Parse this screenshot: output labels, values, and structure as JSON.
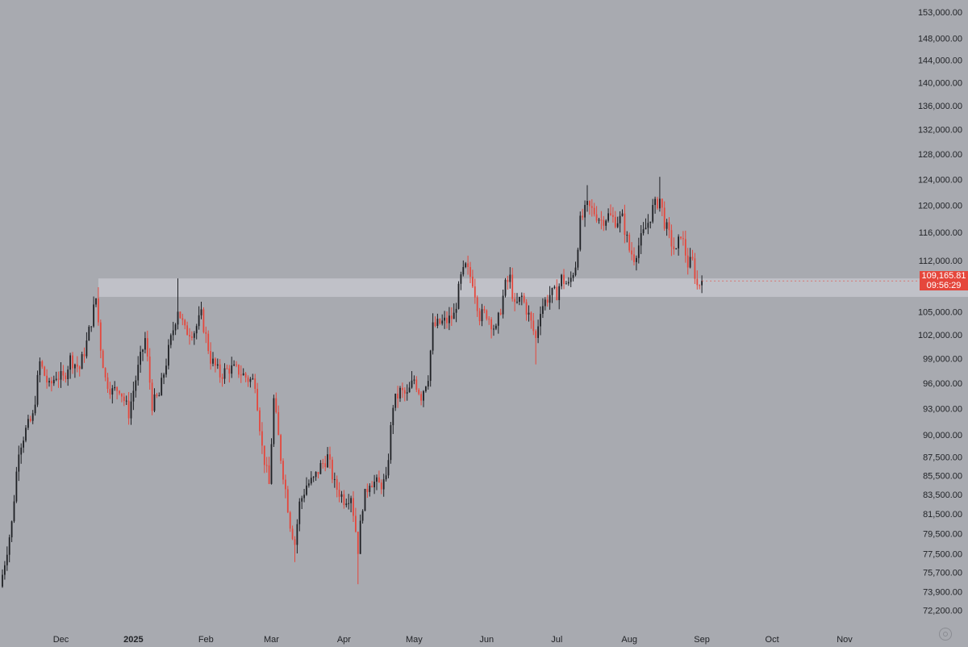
{
  "chart_data": {
    "type": "candlestick",
    "title": "",
    "colors": {
      "up": "#1e2024",
      "down": "#e5473c",
      "background": "#a8aab0",
      "zone": "#c4c6cc"
    },
    "y_axis": {
      "scale": "log",
      "ylim": [
        70500,
        155000
      ],
      "tick_labels": [
        "153,000.00",
        "148,000.00",
        "144,000.00",
        "140,000.00",
        "136,000.00",
        "132,000.00",
        "128,000.00",
        "124,000.00",
        "120,000.00",
        "116,000.00",
        "112,000.00",
        "105,000.00",
        "102,000.00",
        "99,000.00",
        "96,000.00",
        "93,000.00",
        "90,000.00",
        "87,500.00",
        "85,500.00",
        "83,500.00",
        "81,500.00",
        "79,500.00",
        "77,500.00",
        "75,700.00",
        "73,900.00",
        "72,200.00"
      ]
    },
    "x_axis": {
      "tick_labels": [
        "Dec",
        "2025",
        "Feb",
        "Mar",
        "Apr",
        "May",
        "Jun",
        "Jul",
        "Aug",
        "Sep",
        "Oct",
        "Nov"
      ],
      "bold_labels": [
        "2025"
      ],
      "xlim": [
        "2024-11-06",
        "2025-11-21"
      ]
    },
    "zone": {
      "from": 107000,
      "to": 109500
    },
    "last_price": {
      "value": "109,165.81",
      "countdown": "09:56:29"
    },
    "legend": "none",
    "grid": false,
    "anchors": [
      [
        "2024-11-06",
        75500
      ],
      [
        "2024-11-10",
        80500
      ],
      [
        "2024-11-13",
        88500
      ],
      [
        "2024-11-16",
        90500
      ],
      [
        "2024-11-19",
        92000
      ],
      [
        "2024-11-22",
        98500
      ],
      [
        "2024-11-26",
        95500
      ],
      [
        "2024-11-29",
        97000
      ],
      [
        "2024-12-02",
        96500
      ],
      [
        "2024-12-05",
        99000
      ],
      [
        "2024-12-09",
        97800
      ],
      [
        "2024-12-12",
        101000
      ],
      [
        "2024-12-16",
        106800
      ],
      [
        "2024-12-18",
        100500
      ],
      [
        "2024-12-20",
        96500
      ],
      [
        "2024-12-23",
        95000
      ],
      [
        "2024-12-26",
        95500
      ],
      [
        "2024-12-30",
        92500
      ],
      [
        "2025-01-02",
        96500
      ],
      [
        "2025-01-06",
        101500
      ],
      [
        "2025-01-09",
        93500
      ],
      [
        "2025-01-12",
        94500
      ],
      [
        "2025-01-16",
        100000
      ],
      [
        "2025-01-20",
        105500
      ],
      [
        "2025-01-23",
        102500
      ],
      [
        "2025-01-27",
        102500
      ],
      [
        "2025-01-30",
        104500
      ],
      [
        "2025-02-03",
        99000
      ],
      [
        "2025-02-07",
        97000
      ],
      [
        "2025-02-11",
        97800
      ],
      [
        "2025-02-15",
        97500
      ],
      [
        "2025-02-19",
        96500
      ],
      [
        "2025-02-22",
        96200
      ],
      [
        "2025-02-25",
        88500
      ],
      [
        "2025-02-28",
        84500
      ],
      [
        "2025-03-02",
        94000
      ],
      [
        "2025-03-05",
        87500
      ],
      [
        "2025-03-09",
        80500
      ],
      [
        "2025-03-11",
        78500
      ],
      [
        "2025-03-13",
        82500
      ],
      [
        "2025-03-16",
        84500
      ],
      [
        "2025-03-19",
        85000
      ],
      [
        "2025-03-22",
        86500
      ],
      [
        "2025-03-25",
        87500
      ],
      [
        "2025-03-28",
        84500
      ],
      [
        "2025-04-01",
        83000
      ],
      [
        "2025-04-04",
        83500
      ],
      [
        "2025-04-07",
        78000
      ],
      [
        "2025-04-09",
        82500
      ],
      [
        "2025-04-12",
        85000
      ],
      [
        "2025-04-16",
        84500
      ],
      [
        "2025-04-19",
        84800
      ],
      [
        "2025-04-22",
        93500
      ],
      [
        "2025-04-25",
        95000
      ],
      [
        "2025-04-28",
        94500
      ],
      [
        "2025-05-01",
        96500
      ],
      [
        "2025-05-04",
        94500
      ],
      [
        "2025-05-07",
        97000
      ],
      [
        "2025-05-09",
        103000
      ],
      [
        "2025-05-12",
        103500
      ],
      [
        "2025-05-15",
        103800
      ],
      [
        "2025-05-18",
        104500
      ],
      [
        "2025-05-21",
        109500
      ],
      [
        "2025-05-23",
        111000
      ],
      [
        "2025-05-26",
        109200
      ],
      [
        "2025-05-29",
        104500
      ],
      [
        "2025-06-01",
        104800
      ],
      [
        "2025-06-05",
        102500
      ],
      [
        "2025-06-09",
        108500
      ],
      [
        "2025-06-11",
        109500
      ],
      [
        "2025-06-13",
        105500
      ],
      [
        "2025-06-16",
        107000
      ],
      [
        "2025-06-19",
        104500
      ],
      [
        "2025-06-22",
        101500
      ],
      [
        "2025-06-24",
        105500
      ],
      [
        "2025-06-28",
        107300
      ],
      [
        "2025-07-01",
        107500
      ],
      [
        "2025-07-03",
        109500
      ],
      [
        "2025-07-06",
        108500
      ],
      [
        "2025-07-09",
        111500
      ],
      [
        "2025-07-11",
        117500
      ],
      [
        "2025-07-14",
        119800
      ],
      [
        "2025-07-17",
        119000
      ],
      [
        "2025-07-20",
        117800
      ],
      [
        "2025-07-23",
        118500
      ],
      [
        "2025-07-26",
        117800
      ],
      [
        "2025-07-29",
        118000
      ],
      [
        "2025-08-01",
        113500
      ],
      [
        "2025-08-03",
        112500
      ],
      [
        "2025-08-06",
        115000
      ],
      [
        "2025-08-09",
        117500
      ],
      [
        "2025-08-11",
        119500
      ],
      [
        "2025-08-14",
        121000
      ],
      [
        "2025-08-16",
        117500
      ],
      [
        "2025-08-19",
        114500
      ],
      [
        "2025-08-21",
        113000
      ],
      [
        "2025-08-23",
        116000
      ],
      [
        "2025-08-26",
        111500
      ],
      [
        "2025-08-28",
        111800
      ],
      [
        "2025-08-30",
        108500
      ],
      [
        "2025-09-01",
        109166
      ]
    ],
    "wick_extremes": [
      [
        "2024-12-17",
        108300
      ],
      [
        "2025-01-20",
        109500
      ],
      [
        "2025-04-07",
        74600
      ],
      [
        "2025-03-11",
        76700
      ],
      [
        "2025-07-14",
        123100
      ],
      [
        "2025-08-14",
        124400
      ],
      [
        "2025-06-22",
        98300
      ],
      [
        "2025-05-22",
        112000
      ]
    ]
  }
}
